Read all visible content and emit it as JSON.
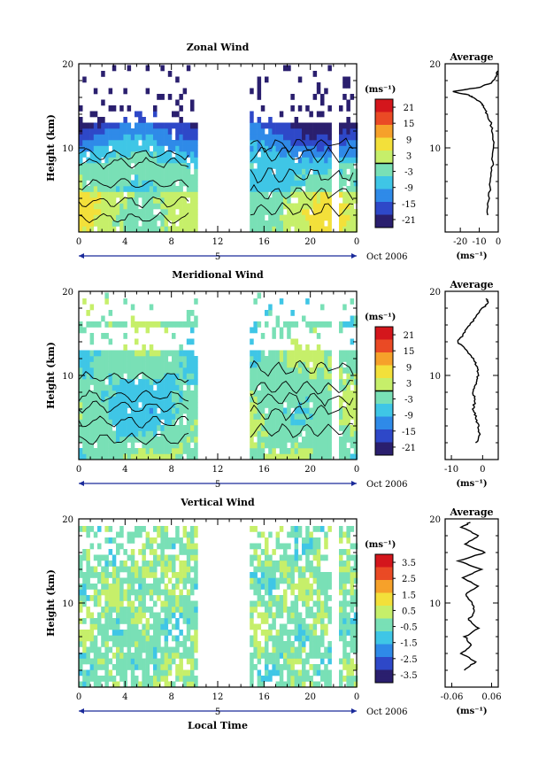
{
  "colors": {
    "colorbar_stops": [
      "#2a1f6e",
      "#2e48c8",
      "#2f8ae8",
      "#3fc6e6",
      "#79e0b6",
      "#c6ef6a",
      "#f3e03a",
      "#f6a12a",
      "#ea4a25",
      "#d4161c"
    ]
  },
  "xaxis": {
    "label": "Local Time",
    "date_label": "Oct 2006",
    "day_label": "5"
  },
  "chart_data": [
    {
      "type": "heatmap",
      "title": "Zonal Wind",
      "ylabel": "Height (km)",
      "xticklabels": [
        "0",
        "4",
        "8",
        "12",
        "16",
        "20",
        "0"
      ],
      "yticklabels": [
        "10",
        "20"
      ],
      "ylim": [
        2,
        20
      ],
      "xlim": [
        0,
        24
      ],
      "colorbar": {
        "unit": "(ms⁻¹)",
        "ticks": [
          "21",
          "15",
          "9",
          "3",
          "-3",
          "-9",
          "-15",
          "-21"
        ],
        "range": [
          -24,
          24
        ]
      },
      "data_gaps_hours": [
        [
          10,
          14.6
        ],
        [
          21.7,
          22.3
        ]
      ],
      "average_panel": {
        "title": "Average",
        "xlabel": "(ms⁻¹)",
        "xticklabels": [
          "-20",
          "-10",
          "0"
        ],
        "xlim": [
          -28,
          0
        ],
        "yticklabels": [
          "10",
          "20"
        ],
        "profile": [
          [
            -6,
            2
          ],
          [
            -5,
            4
          ],
          [
            -4,
            6
          ],
          [
            -3,
            8
          ],
          [
            -2.5,
            10
          ],
          [
            -3,
            12
          ],
          [
            -4,
            13
          ],
          [
            -6,
            14
          ],
          [
            -8,
            15
          ],
          [
            -10,
            15.5
          ],
          [
            -13,
            16
          ],
          [
            -16,
            16.3
          ],
          [
            -24,
            16.7
          ],
          [
            -10,
            17.2
          ],
          [
            -3,
            17.8
          ],
          [
            -1,
            18.5
          ],
          [
            -0.5,
            19.3
          ]
        ]
      }
    },
    {
      "type": "heatmap",
      "title": "Meridional Wind",
      "ylabel": "Height (km)",
      "xticklabels": [
        "0",
        "4",
        "8",
        "12",
        "16",
        "20",
        "0"
      ],
      "yticklabels": [
        "10",
        "20"
      ],
      "ylim": [
        2,
        20
      ],
      "xlim": [
        0,
        24
      ],
      "colorbar": {
        "unit": "(ms⁻¹)",
        "ticks": [
          "21",
          "15",
          "9",
          "3",
          "-3",
          "-9",
          "-15",
          "-21"
        ],
        "range": [
          -24,
          24
        ]
      },
      "data_gaps_hours": [
        [
          10,
          14.6
        ],
        [
          21.7,
          22.3
        ]
      ],
      "average_panel": {
        "title": "Average",
        "xlabel": "(ms⁻¹)",
        "xticklabels": [
          "-10",
          "0"
        ],
        "xlim": [
          -12,
          5
        ],
        "yticklabels": [
          "10",
          "20"
        ],
        "profile": [
          [
            -2,
            2
          ],
          [
            -1,
            3
          ],
          [
            -1.5,
            4
          ],
          [
            -2,
            5
          ],
          [
            -3,
            6
          ],
          [
            -2.5,
            7
          ],
          [
            -3,
            8
          ],
          [
            -2,
            9
          ],
          [
            -1.5,
            10
          ],
          [
            -1.8,
            11
          ],
          [
            -3,
            12
          ],
          [
            -5,
            13
          ],
          [
            -8,
            14
          ],
          [
            -6,
            15
          ],
          [
            -4,
            16
          ],
          [
            -2,
            17
          ],
          [
            0,
            18
          ],
          [
            2,
            18.7
          ],
          [
            1,
            19.2
          ]
        ]
      }
    },
    {
      "type": "heatmap",
      "title": "Vertical Wind",
      "ylabel": "Height (km)",
      "xticklabels": [
        "0",
        "4",
        "8",
        "12",
        "16",
        "20",
        "0"
      ],
      "yticklabels": [
        "10",
        "20"
      ],
      "ylim": [
        2,
        20
      ],
      "xlim": [
        0,
        24
      ],
      "colorbar": {
        "unit": "(ms⁻¹)",
        "ticks": [
          "3.5",
          "2.5",
          "1.5",
          "0.5",
          "-0.5",
          "-1.5",
          "-2.5",
          "-3.5"
        ],
        "range": [
          -4,
          4
        ]
      },
      "data_gaps_hours": [
        [
          10,
          14.6
        ],
        [
          21.7,
          22.3
        ]
      ],
      "average_panel": {
        "title": "Average",
        "xlabel": "(ms⁻¹)",
        "xticklabels": [
          "-0.06",
          "0.06"
        ],
        "xlim": [
          -0.08,
          0.08
        ],
        "yticklabels": [
          "10",
          "20"
        ],
        "profile": [
          [
            -0.02,
            2
          ],
          [
            0.01,
            3
          ],
          [
            -0.03,
            4
          ],
          [
            0,
            5
          ],
          [
            -0.02,
            6
          ],
          [
            0.02,
            7
          ],
          [
            -0.01,
            8
          ],
          [
            0.01,
            9
          ],
          [
            0,
            10
          ],
          [
            -0.02,
            11
          ],
          [
            0.02,
            12
          ],
          [
            -0.03,
            13
          ],
          [
            0.03,
            14
          ],
          [
            -0.04,
            15
          ],
          [
            0.04,
            16
          ],
          [
            -0.02,
            17
          ],
          [
            0.02,
            18
          ],
          [
            -0.03,
            19
          ],
          [
            0,
            19.7
          ]
        ]
      }
    }
  ]
}
